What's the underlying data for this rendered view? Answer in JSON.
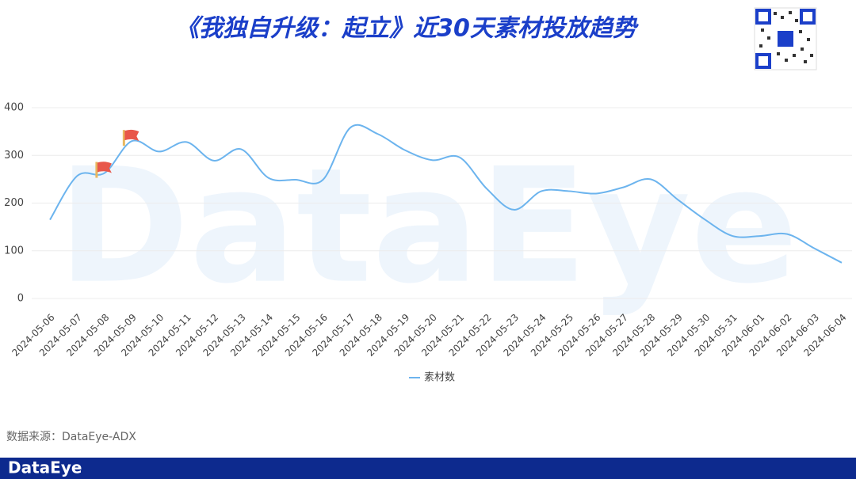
{
  "chart_data": {
    "type": "line",
    "title": "《我独自升级：起立》近30天素材投放趋势",
    "categories": [
      "2024-05-06",
      "2024-05-07",
      "2024-05-08",
      "2024-05-09",
      "2024-05-10",
      "2024-05-11",
      "2024-05-12",
      "2024-05-13",
      "2024-05-14",
      "2024-05-15",
      "2024-05-16",
      "2024-05-17",
      "2024-05-18",
      "2024-05-19",
      "2024-05-20",
      "2024-05-21",
      "2024-05-22",
      "2024-05-23",
      "2024-05-24",
      "2024-05-25",
      "2024-05-26",
      "2024-05-27",
      "2024-05-28",
      "2024-05-29",
      "2024-05-30",
      "2024-05-31",
      "2024-06-01",
      "2024-06-02",
      "2024-06-03",
      "2024-06-04"
    ],
    "series": [
      {
        "name": "素材数",
        "color": "#6cb4ee",
        "values": [
          165,
          257,
          263,
          330,
          308,
          328,
          289,
          313,
          253,
          249,
          249,
          358,
          345,
          311,
          290,
          296,
          230,
          186,
          225,
          225,
          220,
          233,
          250,
          207,
          165,
          131,
          131,
          135,
          105,
          75
        ]
      }
    ],
    "ylim": [
      0,
      400
    ],
    "yticks": [
      0,
      100,
      200,
      300,
      400
    ],
    "grid": true,
    "watermark": "DataEye",
    "source": "数据来源：DataEye-ADX",
    "footer_logo": "DataEye"
  }
}
